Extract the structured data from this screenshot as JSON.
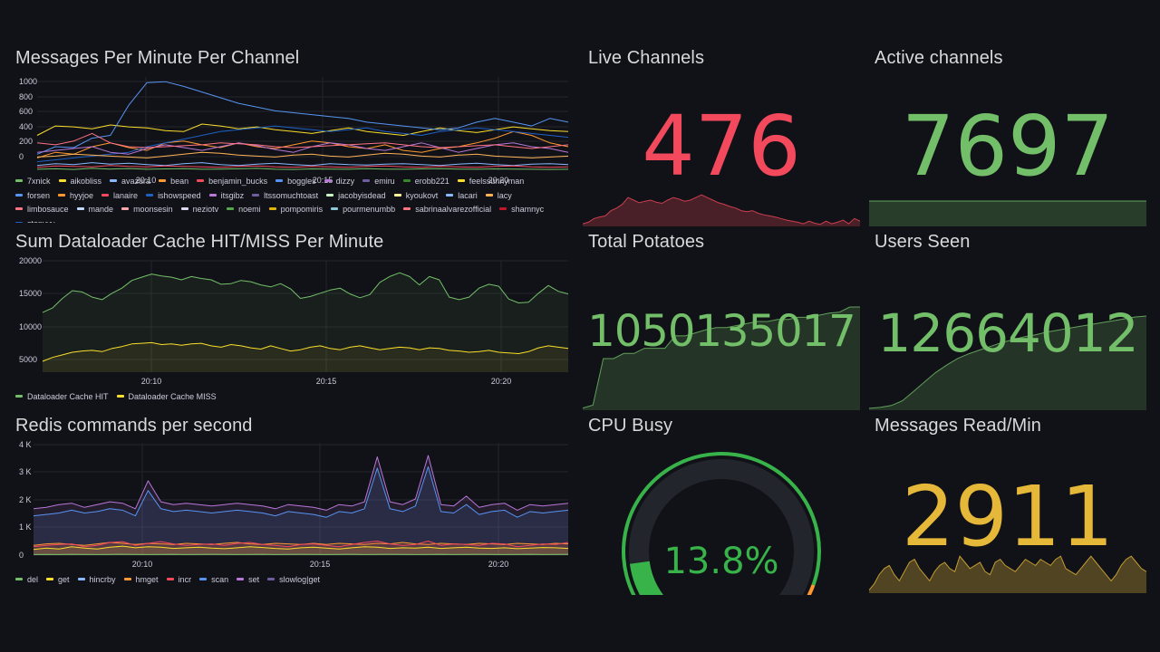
{
  "colors": {
    "background": "#111217",
    "grid": "#23252b",
    "red": "#f2495c",
    "green": "#73bf69",
    "yellow": "#fade2a",
    "orange": "#ff9830",
    "gold": "#e6b83a"
  },
  "messages_per_minute": {
    "title": "Messages Per Minute Per Channel",
    "chart_data": {
      "type": "line",
      "ylim": [
        0,
        1000
      ],
      "y_ticks": [
        "1000",
        "800",
        "600",
        "400",
        "200",
        "0"
      ],
      "x_ticks": [
        "20:10",
        "20:15",
        "20:20"
      ],
      "series": [
        {
          "name": "7xnick",
          "color": "#73bf69",
          "values": [
            20,
            25,
            18,
            30,
            22,
            28,
            20,
            24,
            26,
            20,
            22,
            25,
            30,
            20,
            18,
            24,
            22,
            20,
            26,
            22,
            20,
            24,
            26,
            22,
            20,
            24,
            22,
            20,
            18,
            20
          ]
        },
        {
          "name": "aikobliss",
          "color": "#fade2a",
          "values": [
            380,
            480,
            470,
            450,
            490,
            470,
            460,
            430,
            420,
            500,
            480,
            450,
            470,
            440,
            420,
            400,
            430,
            460,
            420,
            400,
            380,
            420,
            460,
            430,
            410,
            440,
            470,
            450,
            430,
            420
          ]
        },
        {
          "name": "avazura",
          "color": "#8ab8ff",
          "values": [
            60,
            80,
            70,
            90,
            75,
            85,
            70,
            60,
            80,
            90,
            70,
            60,
            75,
            85,
            70,
            60,
            80,
            70,
            65,
            75,
            80,
            70,
            60,
            75,
            85,
            70,
            60,
            75,
            80,
            70
          ]
        },
        {
          "name": "bean",
          "color": "#ff9830",
          "values": [
            140,
            200,
            180,
            260,
            300,
            250,
            220,
            300,
            320,
            280,
            250,
            300,
            260,
            240,
            280,
            320,
            300,
            260,
            240,
            280,
            220,
            200,
            240,
            260,
            300,
            350,
            420,
            380,
            300,
            260
          ]
        },
        {
          "name": "benjamin_bucks",
          "color": "#f2495c",
          "values": [
            40,
            55,
            50,
            45,
            60,
            50,
            45,
            55,
            50,
            45,
            40,
            50,
            55,
            45,
            40,
            50,
            45,
            40,
            50,
            55,
            45,
            40,
            50,
            45,
            40,
            50,
            55,
            45,
            40,
            45
          ]
        },
        {
          "name": "forsen",
          "color": "#5794f2",
          "values": [
            180,
            260,
            250,
            350,
            380,
            700,
            940,
            950,
            900,
            840,
            780,
            720,
            680,
            640,
            620,
            600,
            580,
            560,
            520,
            500,
            480,
            460,
            440,
            460,
            520,
            560,
            520,
            480,
            560,
            520
          ]
        },
        {
          "name": "ishowspeed",
          "color": "#1f60c4",
          "values": [
            100,
            120,
            140,
            160,
            180,
            200,
            260,
            300,
            340,
            380,
            420,
            440,
            460,
            480,
            460,
            440,
            420,
            440,
            460,
            420,
            400,
            380,
            420,
            440,
            460,
            440,
            420,
            400,
            380,
            360
          ]
        },
        {
          "name": "emiru",
          "color": "#b877d9",
          "values": [
            200,
            220,
            240,
            260,
            200,
            180,
            240,
            280,
            250,
            220,
            260,
            300,
            270,
            230,
            200,
            260,
            300,
            280,
            240,
            220,
            260,
            300,
            250,
            200,
            240,
            280,
            300,
            260,
            240,
            200
          ]
        },
        {
          "name": "sabrinaalvarezofficial",
          "color": "#ff7383",
          "values": [
            300,
            280,
            320,
            400,
            300,
            260,
            250,
            260,
            270,
            280,
            300,
            290,
            280,
            260,
            250,
            260,
            270,
            280,
            290,
            300,
            280,
            260,
            250,
            260,
            270,
            280,
            260,
            240,
            260,
            280
          ]
        },
        {
          "name": "lacy",
          "color": "#ffb357",
          "values": [
            150,
            160,
            180,
            170,
            160,
            150,
            140,
            160,
            180,
            200,
            190,
            170,
            160,
            150,
            170,
            180,
            160,
            150,
            170,
            190,
            180,
            160,
            150,
            170,
            180,
            160,
            150,
            140,
            150,
            160
          ]
        }
      ]
    },
    "legend": [
      "7xnick",
      "aikobliss",
      "avazura",
      "bean",
      "benjamin_bucks",
      "boggles",
      "dizzy",
      "emiru",
      "erobb221",
      "feelssunnyman",
      "forsen",
      "hyyjoe",
      "lanaire",
      "ishowspeed",
      "itsgibz",
      "ltssomuchtoast",
      "jacobyisdead",
      "kyoukovt",
      "lacari",
      "lacy",
      "limbosauce",
      "mande",
      "moonsesin",
      "neziotv",
      "noemi",
      "pompomiris",
      "pourmenumbb",
      "sabrinaalvarezofficial",
      "shamnyc",
      "stanyyy"
    ],
    "legend_colors": [
      "#73bf69",
      "#fade2a",
      "#8ab8ff",
      "#ff9830",
      "#f2495c",
      "#5794f2",
      "#b877d9",
      "#705da0",
      "#37872d",
      "#fade2a",
      "#5794f2",
      "#ff9830",
      "#f2495c",
      "#1f60c4",
      "#b877d9",
      "#705da0",
      "#c8f2c2",
      "#fff899",
      "#8ab8ff",
      "#ffb357",
      "#ff7383",
      "#c0d8ff",
      "#ffa6b0",
      "#ded8f2",
      "#56a64b",
      "#e0b400",
      "#8ac7d8",
      "#ff7383",
      "#c4162a",
      "#1f60c4"
    ]
  },
  "dataloader": {
    "title": "Sum Dataloader Cache HIT/MISS Per Minute",
    "chart_data": {
      "type": "line",
      "ylim": [
        2500,
        20000
      ],
      "y_ticks": [
        "20000",
        "15000",
        "10000",
        "5000"
      ],
      "x_ticks": [
        "20:10",
        "20:15",
        "20:20"
      ],
      "series": [
        {
          "name": "Dataloader Cache HIT",
          "color": "#73bf69",
          "values": [
            11800,
            12500,
            14000,
            15200,
            15000,
            14200,
            13800,
            14800,
            15600,
            16800,
            17300,
            17800,
            17500,
            17300,
            16900,
            17400,
            17100,
            16900,
            16200,
            16300,
            16800,
            16600,
            16100,
            15800,
            16300,
            15500,
            14000,
            14300,
            14800,
            15300,
            15600,
            14700,
            14100,
            14600,
            16500,
            17400,
            18000,
            17400,
            16100,
            17400,
            16900,
            14200,
            13800,
            14200,
            15600,
            16200,
            15900,
            13900,
            13300,
            13400,
            14800,
            16000,
            15100,
            14700
          ]
        },
        {
          "name": "Dataloader Cache MISS",
          "color": "#fade2a",
          "values": [
            4200,
            4800,
            5200,
            5600,
            5800,
            5900,
            5700,
            6200,
            6500,
            6900,
            7000,
            7100,
            6800,
            6900,
            6700,
            6900,
            7000,
            6600,
            6400,
            6800,
            6600,
            6300,
            6100,
            6600,
            6200,
            5800,
            6000,
            6400,
            6600,
            6200,
            6000,
            6400,
            6600,
            6300,
            6000,
            6200,
            6400,
            6300,
            6000,
            6300,
            6200,
            5900,
            5800,
            5600,
            5700,
            5900,
            5600,
            5500,
            5400,
            5700,
            6300,
            6600,
            6400,
            6200
          ]
        }
      ]
    },
    "legend": [
      "Dataloader Cache HIT",
      "Dataloader Cache MISS"
    ]
  },
  "redis": {
    "title": "Redis commands per second",
    "chart_data": {
      "type": "area",
      "ylim": [
        0,
        4000
      ],
      "y_ticks": [
        "4 K",
        "3 K",
        "2 K",
        "1 K",
        "0"
      ],
      "x_ticks": [
        "20:10",
        "20:15",
        "20:20"
      ],
      "series": [
        {
          "name": "set",
          "color": "#b877d9",
          "values": [
            1650,
            1700,
            1800,
            1850,
            1700,
            1800,
            1900,
            1850,
            1650,
            2650,
            1900,
            1800,
            1850,
            1800,
            1750,
            1800,
            1850,
            1800,
            1750,
            1650,
            1800,
            1750,
            1700,
            1600,
            1800,
            1750,
            1900,
            3500,
            1900,
            1800,
            2000,
            3550,
            1800,
            1750,
            2100,
            1700,
            1800,
            1850,
            1600,
            1800,
            1750,
            1800,
            1850
          ]
        },
        {
          "name": "hincrby",
          "color": "#5794f2",
          "values": [
            1400,
            1450,
            1500,
            1600,
            1500,
            1550,
            1650,
            1600,
            1400,
            2300,
            1650,
            1550,
            1600,
            1550,
            1500,
            1550,
            1600,
            1550,
            1500,
            1400,
            1550,
            1500,
            1450,
            1350,
            1550,
            1500,
            1650,
            3100,
            1650,
            1550,
            1750,
            3150,
            1550,
            1500,
            1800,
            1450,
            1550,
            1600,
            1350,
            1550,
            1500,
            1550,
            1600
          ]
        },
        {
          "name": "hmget",
          "color": "#ff9830",
          "values": [
            350,
            400,
            420,
            380,
            350,
            400,
            450,
            420,
            380,
            420,
            400,
            380,
            420,
            400,
            380,
            420,
            450,
            400,
            380,
            420,
            400,
            380,
            420,
            380,
            420,
            400,
            380,
            420,
            400,
            450,
            400,
            380,
            420,
            400,
            380,
            420,
            400,
            380,
            420,
            400,
            380,
            420,
            400
          ]
        },
        {
          "name": "incr",
          "color": "#f2495c",
          "values": [
            300,
            350,
            380,
            400,
            300,
            350,
            450,
            480,
            350,
            420,
            480,
            400,
            350,
            380,
            400,
            350,
            420,
            450,
            380,
            350,
            300,
            380,
            400,
            350,
            300,
            380,
            450,
            500,
            400,
            350,
            380,
            500,
            350,
            400,
            380,
            350,
            420,
            400,
            300,
            350,
            400,
            380,
            450
          ]
        },
        {
          "name": "get",
          "color": "#fade2a",
          "values": [
            200,
            250,
            220,
            300,
            250,
            220,
            280,
            320,
            260,
            300,
            280,
            240,
            260,
            280,
            250,
            230,
            260,
            300,
            270,
            240,
            220,
            260,
            280,
            250,
            220,
            260,
            300,
            280,
            240,
            260,
            250,
            280,
            240,
            260,
            280,
            250,
            240,
            260,
            230,
            250,
            270,
            260,
            240
          ]
        },
        {
          "name": "del",
          "color": "#73bf69",
          "values": [
            20,
            25,
            20,
            30,
            25,
            20,
            25,
            30,
            25,
            20,
            25,
            30,
            20,
            25,
            30,
            25,
            20,
            25,
            30,
            20,
            25,
            30,
            25,
            20,
            25,
            30,
            20,
            25,
            30,
            25,
            20,
            25,
            30,
            20,
            25,
            30,
            25,
            20,
            25,
            30,
            20,
            25,
            30
          ]
        }
      ]
    },
    "legend": [
      "del",
      "get",
      "hincrby",
      "hmget",
      "incr",
      "scan",
      "set",
      "slowlog|get"
    ],
    "legend_colors": [
      "#73bf69",
      "#fade2a",
      "#8ab8ff",
      "#ff9830",
      "#f2495c",
      "#5794f2",
      "#b877d9",
      "#705da0"
    ]
  },
  "live_channels": {
    "title": "Live Channels",
    "value": "476",
    "color": "#f2495c",
    "spark": [
      0.05,
      0.08,
      0.15,
      0.18,
      0.2,
      0.3,
      0.35,
      0.42,
      0.55,
      0.5,
      0.45,
      0.48,
      0.5,
      0.46,
      0.44,
      0.5,
      0.55,
      0.52,
      0.48,
      0.5,
      0.55,
      0.6,
      0.55,
      0.5,
      0.45,
      0.42,
      0.38,
      0.35,
      0.3,
      0.28,
      0.3,
      0.25,
      0.22,
      0.2,
      0.18,
      0.15,
      0.12,
      0.1,
      0.08,
      0.05,
      0.1,
      0.06,
      0.04,
      0.1,
      0.05,
      0.08,
      0.12,
      0.05,
      0.15,
      0.1
    ]
  },
  "active_channels": {
    "title": "Active channels",
    "value": "7697",
    "color": "#73bf69",
    "spark": [
      1,
      1
    ]
  },
  "total_potatoes": {
    "title": "Total Potatoes",
    "value": "1050135017",
    "color": "#73bf69",
    "spark": [
      0.02,
      0.05,
      0.5,
      0.5,
      0.55,
      0.55,
      0.6,
      0.6,
      0.6,
      0.72,
      0.72,
      0.75,
      0.78,
      0.8,
      0.8,
      0.82,
      0.84,
      0.86,
      0.86,
      0.88,
      0.88,
      0.9,
      0.9,
      0.92,
      0.94,
      0.95,
      1.0,
      1.0
    ]
  },
  "users_seen": {
    "title": "Users Seen",
    "value": "12664012",
    "color": "#73bf69",
    "spark": [
      0.02,
      0.03,
      0.05,
      0.1,
      0.2,
      0.3,
      0.4,
      0.48,
      0.55,
      0.6,
      0.64,
      0.68,
      0.72,
      0.75,
      0.78,
      0.8,
      0.83,
      0.85,
      0.87,
      0.89,
      0.91,
      0.93,
      0.95,
      0.97,
      0.99,
      1.0
    ]
  },
  "cpu_busy": {
    "title": "CPU Busy",
    "value": "13.8%",
    "percent": 13.8,
    "color": "#37b34a",
    "track_color": "#22252b"
  },
  "messages_read": {
    "title": "Messages Read/Min",
    "value": "2911",
    "color": "#e6b83a",
    "spark": [
      0.05,
      0.15,
      0.3,
      0.4,
      0.45,
      0.3,
      0.2,
      0.35,
      0.5,
      0.55,
      0.4,
      0.3,
      0.2,
      0.35,
      0.45,
      0.5,
      0.4,
      0.35,
      0.6,
      0.5,
      0.4,
      0.45,
      0.5,
      0.35,
      0.3,
      0.5,
      0.55,
      0.45,
      0.4,
      0.35,
      0.45,
      0.55,
      0.5,
      0.45,
      0.55,
      0.5,
      0.45,
      0.55,
      0.6,
      0.4,
      0.35,
      0.3,
      0.4,
      0.5,
      0.6,
      0.5,
      0.4,
      0.3,
      0.2,
      0.3,
      0.45,
      0.55,
      0.6,
      0.5,
      0.4,
      0.35
    ]
  }
}
